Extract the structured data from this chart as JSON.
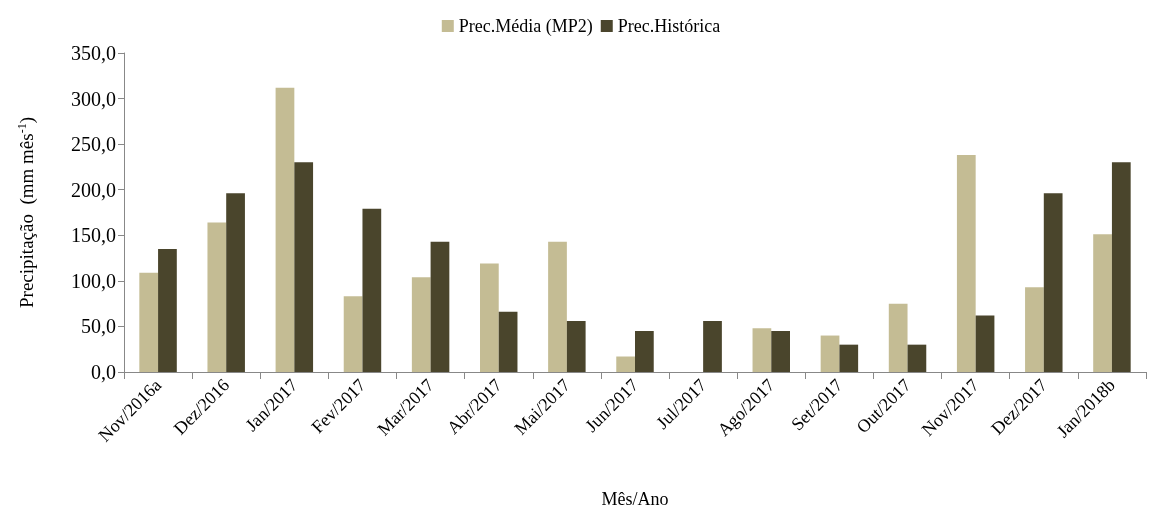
{
  "chart_data": {
    "type": "bar",
    "xlabel": "Mês/Ano",
    "ylabel": "Precipitação  (mm mês$^{-1}$)",
    "categories": [
      "Nov/2016a",
      "Dez/2016",
      "Jan/2017",
      "Fev/2017",
      "Mar/2017",
      "Abr/2017",
      "Mai/2017",
      "Jun/2017",
      "Jul/2017",
      "Ago/2017",
      "Set/2017",
      "Out/2017",
      "Nov/2017",
      "Dez/2017",
      "Jan/2018b"
    ],
    "series": [
      {
        "name": "Prec.Média (MP2)",
        "color": "#c4bc94",
        "values": [
          109,
          164,
          312,
          83,
          104,
          119,
          143,
          17,
          0,
          48,
          40,
          75,
          238,
          93,
          151
        ]
      },
      {
        "name": "Prec.Histórica",
        "color": "#4a452c",
        "values": [
          135,
          196,
          230,
          179,
          143,
          66,
          56,
          45,
          56,
          45,
          30,
          30,
          62,
          196,
          230
        ]
      }
    ],
    "ylim": [
      0,
      350
    ],
    "yticks": [
      {
        "value": 0,
        "label": "0,0"
      },
      {
        "value": 50,
        "label": "50,0"
      },
      {
        "value": 100,
        "label": "100,0"
      },
      {
        "value": 150,
        "label": "150,0"
      },
      {
        "value": 200,
        "label": "200,0"
      },
      {
        "value": 250,
        "label": "250,0"
      },
      {
        "value": 300,
        "label": "300,0"
      },
      {
        "value": 350,
        "label": "350,0"
      }
    ],
    "grid": false,
    "legend": "top"
  }
}
